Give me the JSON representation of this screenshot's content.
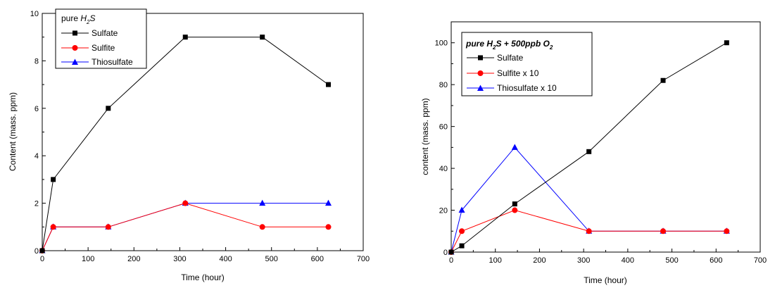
{
  "chart_data": [
    {
      "type": "line",
      "legend_title": "pure H2S",
      "xlabel": "Time (hour)",
      "ylabel": "Content (mass. ppm)",
      "xlim": [
        0,
        700
      ],
      "ylim": [
        0,
        10
      ],
      "xticks": [
        0,
        100,
        200,
        300,
        400,
        500,
        600,
        700
      ],
      "yticks": [
        0,
        2,
        4,
        6,
        8,
        10
      ],
      "legend_placement": "top-left",
      "grid": false,
      "series": [
        {
          "name": "Sulfate",
          "color": "#000000",
          "marker": "square",
          "x": [
            0,
            24,
            144,
            312,
            480,
            624
          ],
          "y": [
            0,
            3,
            6,
            9,
            9,
            7
          ]
        },
        {
          "name": "Sulfite",
          "color": "#ff0000",
          "marker": "circle",
          "x": [
            0,
            24,
            144,
            312,
            480,
            624
          ],
          "y": [
            0,
            1,
            1,
            2,
            1,
            1
          ]
        },
        {
          "name": "Thiosulfate",
          "color": "#0000ff",
          "marker": "triangle",
          "x": [
            0,
            24,
            144,
            312,
            480,
            624
          ],
          "y": [
            0,
            1,
            1,
            2,
            2,
            2
          ]
        }
      ]
    },
    {
      "type": "line",
      "legend_title": "pure H2S + 500ppb O2",
      "xlabel": "Time (hour)",
      "ylabel": "content (mass. ppm)",
      "xlim": [
        0,
        700
      ],
      "ylim": [
        0,
        110
      ],
      "xticks": [
        0,
        100,
        200,
        300,
        400,
        500,
        600,
        700
      ],
      "yticks": [
        0,
        20,
        40,
        60,
        80,
        100
      ],
      "legend_placement": "top-left",
      "grid": false,
      "series": [
        {
          "name": "Sulfate",
          "color": "#000000",
          "marker": "square",
          "x": [
            0,
            24,
            144,
            312,
            480,
            624
          ],
          "y": [
            0,
            3,
            23,
            48,
            82,
            100
          ]
        },
        {
          "name": "Sulfite x 10",
          "color": "#ff0000",
          "marker": "circle",
          "x": [
            0,
            24,
            144,
            312,
            480,
            624
          ],
          "y": [
            0,
            10,
            20,
            10,
            10,
            10
          ]
        },
        {
          "name": "Thiosulfate x 10",
          "color": "#0000ff",
          "marker": "triangle",
          "x": [
            0,
            24,
            144,
            312,
            480,
            624
          ],
          "y": [
            0,
            20,
            50,
            10,
            10,
            10
          ]
        }
      ]
    }
  ]
}
